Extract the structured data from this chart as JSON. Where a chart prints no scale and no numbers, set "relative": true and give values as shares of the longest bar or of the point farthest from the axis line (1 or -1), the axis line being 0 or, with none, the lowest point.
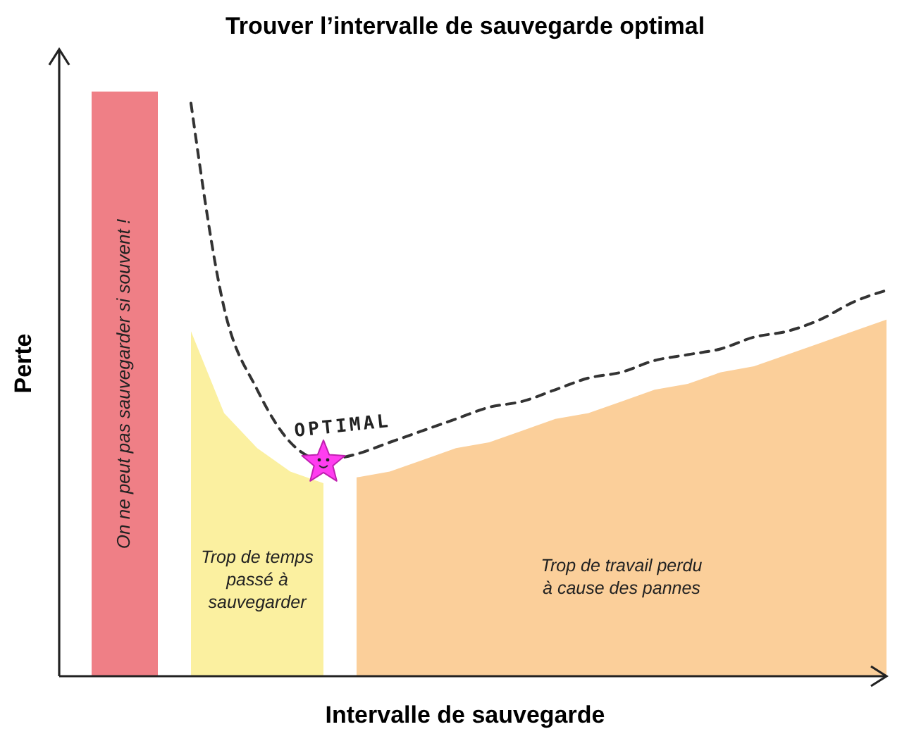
{
  "chart_data": {
    "type": "area",
    "title": "Trouver l’intervalle de sauvegarde optimal",
    "xlabel": "Intervalle de sauvegarde",
    "ylabel": "Perte",
    "relative": true,
    "categories": [
      null,
      null,
      null,
      null,
      null,
      null,
      null,
      null,
      null,
      null,
      null,
      null,
      null,
      null,
      null,
      null,
      null,
      null,
      null,
      null,
      null,
      null,
      null,
      null,
      null
    ],
    "series": [
      {
        "name": "On ne peut pas sauvegarder si souvent !",
        "color": "#ef7f86",
        "values": [
          1,
          1,
          1,
          null,
          null,
          null,
          null,
          null,
          null,
          null,
          null,
          null,
          null,
          null,
          null,
          null,
          null,
          null,
          null,
          null,
          null,
          null,
          null,
          null,
          null
        ]
      },
      {
        "name": "Trop de temps passé à sauvegarder",
        "color": "#fbf0a0",
        "values": [
          null,
          null,
          null,
          0.59,
          0.45,
          0.39,
          0.35,
          0.33,
          null,
          null,
          null,
          null,
          null,
          null,
          null,
          null,
          null,
          null,
          null,
          null,
          null,
          null,
          null,
          null,
          null
        ]
      },
      {
        "name": "Trop de travail perdu à cause des pannes",
        "color": "#fbcf9a",
        "values": [
          null,
          null,
          null,
          null,
          null,
          null,
          null,
          null,
          0.34,
          0.35,
          0.37,
          0.39,
          0.4,
          0.42,
          0.44,
          0.45,
          0.47,
          0.49,
          0.5,
          0.52,
          0.53,
          0.55,
          0.57,
          0.59,
          0.61
        ]
      },
      {
        "type": "line",
        "color": "#333333",
        "line_style": "dashed",
        "values": [
          null,
          null,
          null,
          0.98,
          0.63,
          0.49,
          0.4,
          0.37,
          0.38,
          0.4,
          0.42,
          0.44,
          0.46,
          0.47,
          0.49,
          0.51,
          0.52,
          0.54,
          0.55,
          0.56,
          0.58,
          0.59,
          0.61,
          0.64,
          0.66
        ]
      }
    ],
    "annotations": [
      "OPTIMAL"
    ]
  }
}
